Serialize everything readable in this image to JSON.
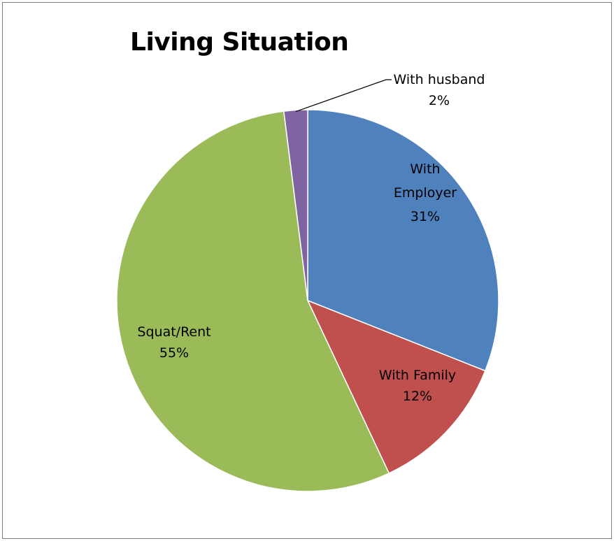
{
  "chart_data": {
    "type": "pie",
    "title": "Living Situation",
    "slices": [
      {
        "label_lines": [
          "With",
          "Employer"
        ],
        "value": 31,
        "pct_text": "31%",
        "color": "#4f81bd"
      },
      {
        "label_lines": [
          "With Family"
        ],
        "value": 12,
        "pct_text": "12%",
        "color": "#c0504d"
      },
      {
        "label_lines": [
          "Squat/Rent"
        ],
        "value": 55,
        "pct_text": "55%",
        "color": "#9bbb59"
      },
      {
        "label_lines": [
          "With husband"
        ],
        "value": 2,
        "pct_text": "2%",
        "color": "#8064a2"
      }
    ],
    "start": "top",
    "direction": "clockwise",
    "legend": "none"
  }
}
